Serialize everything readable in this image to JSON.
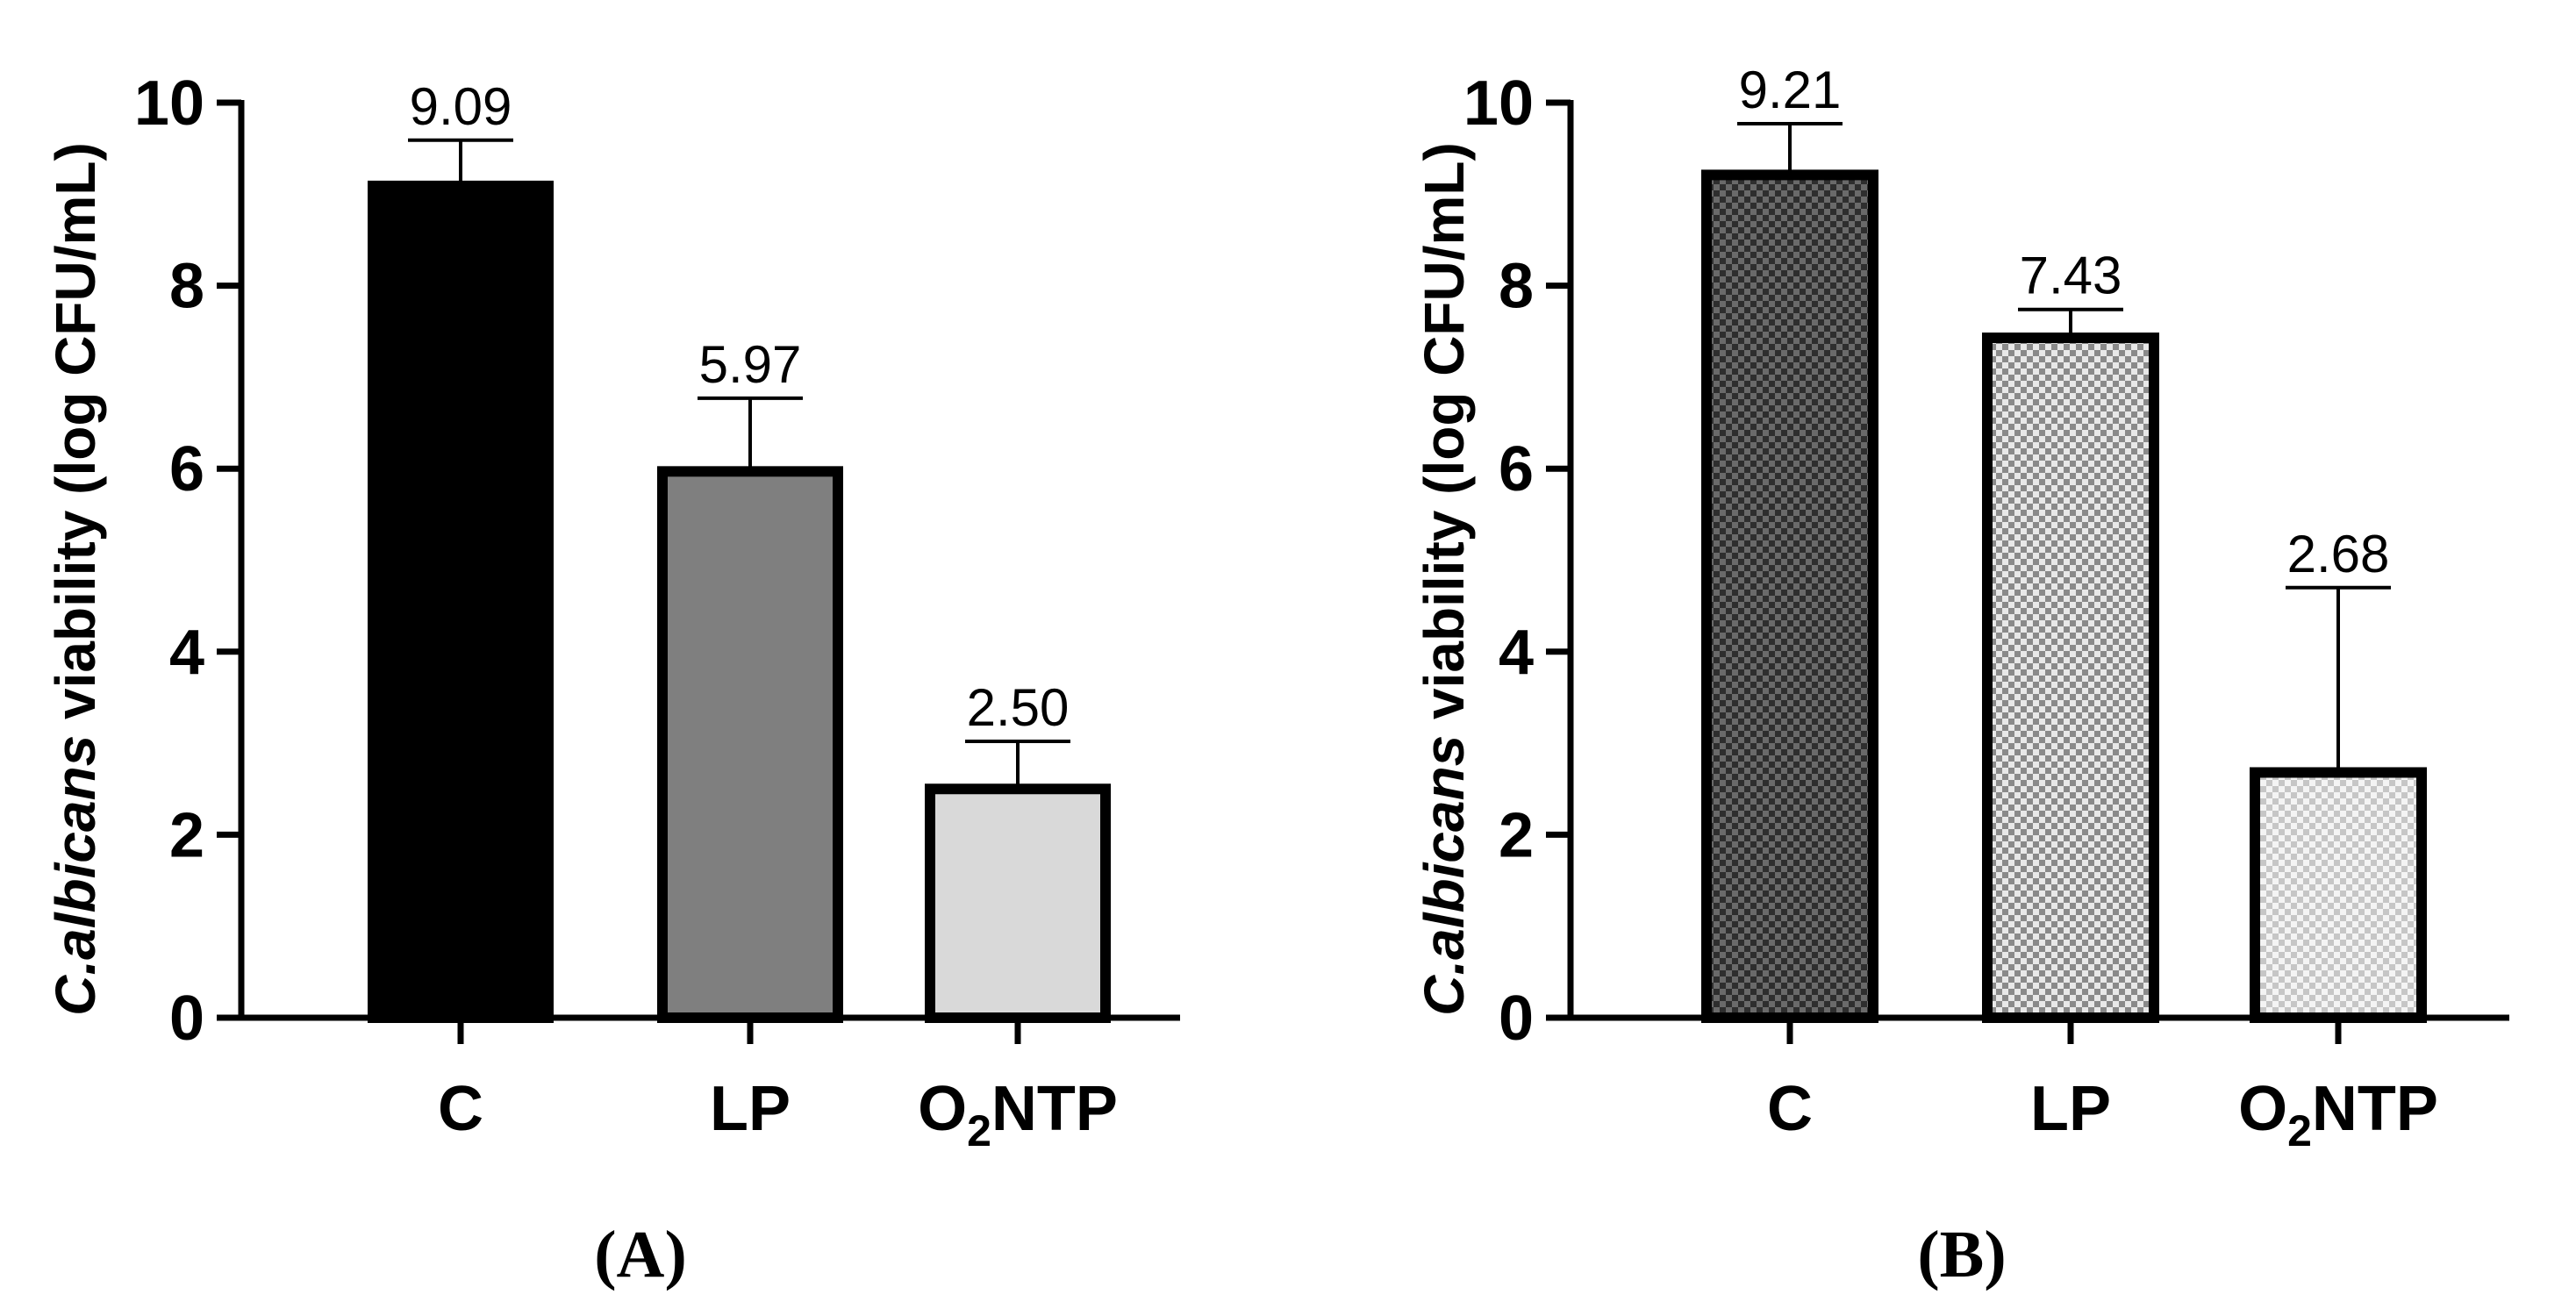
{
  "chart_data": [
    {
      "type": "bar",
      "panel": "A",
      "panel_label": "A",
      "ylabel_prefix": "C.albicans",
      "ylabel_suffix": " viability (log CFU/mL)",
      "ylim": [
        0,
        10
      ],
      "yticks": [
        "0",
        "2",
        "4",
        "6",
        "8",
        "10"
      ],
      "categories": [
        {
          "main": "C",
          "sub": "",
          "tail": ""
        },
        {
          "main": "LP",
          "sub": "",
          "tail": ""
        },
        {
          "main": "O",
          "sub": "2",
          "tail": "NTP"
        }
      ],
      "values": [
        9.09,
        5.97,
        2.5
      ],
      "value_labels": [
        "9.09",
        "5.97",
        "2.50"
      ],
      "errors": [
        0.5,
        0.8,
        0.52
      ],
      "fills": [
        "#000000",
        "#7f7f7f",
        "#d9d9d9"
      ],
      "patterns": [
        "none",
        "none",
        "none"
      ]
    },
    {
      "type": "bar",
      "panel": "B",
      "panel_label": "B",
      "ylabel_prefix": "C.albicans",
      "ylabel_suffix": " viability (log CFU/mL)",
      "ylim": [
        0,
        10
      ],
      "yticks": [
        "0",
        "2",
        "4",
        "6",
        "8",
        "10"
      ],
      "categories": [
        {
          "main": "C",
          "sub": "",
          "tail": ""
        },
        {
          "main": "LP",
          "sub": "",
          "tail": ""
        },
        {
          "main": "O",
          "sub": "2",
          "tail": "NTP"
        }
      ],
      "values": [
        9.21,
        7.43,
        2.68
      ],
      "value_labels": [
        "9.21",
        "7.43",
        "2.68"
      ],
      "errors": [
        0.56,
        0.31,
        2.02
      ],
      "fills": [
        "#555555",
        "#bcbcbc",
        "#e6e6e6"
      ],
      "patterns": [
        "checker-dark",
        "checker-mid",
        "checker-light"
      ]
    }
  ]
}
